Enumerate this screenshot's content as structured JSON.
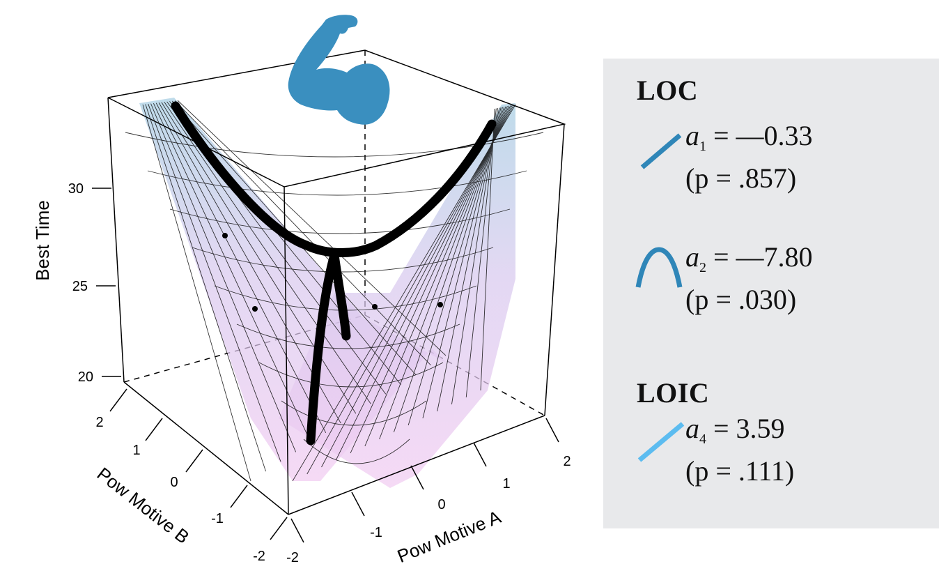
{
  "chart_data": {
    "type": "surface3d",
    "zlabel": "Best Time",
    "xlabel": "Pow Motive A",
    "ylabel": "Pow Motive B",
    "z_ticks": [
      "20",
      "25",
      "30"
    ],
    "x_ticks": [
      "-2",
      "-1",
      "0",
      "1",
      "2"
    ],
    "y_ticks": [
      "-2",
      "-1",
      "0",
      "1",
      "2"
    ],
    "xlim": [
      -2,
      2
    ],
    "ylim": [
      -2,
      2
    ],
    "zlim": [
      20,
      35
    ],
    "surface_colors": {
      "high": "#a9cfe3",
      "low": "#f2cdf2",
      "grid": "#111111"
    },
    "ridge_line_color": "#000000",
    "icon": "flexed-arm-icon",
    "icon_color": "#3a8fbf"
  },
  "legend": {
    "loc": {
      "heading": "LOC",
      "a1": {
        "symbol": "a",
        "sub": "1",
        "value": "= —0.33",
        "p": "(p = .857)",
        "color": "#2f86b8"
      },
      "a2": {
        "symbol": "a",
        "sub": "2",
        "value": "= —7.80",
        "p": "(p = .030)",
        "color": "#2f86b8"
      }
    },
    "loic": {
      "heading": "LOIC",
      "a4": {
        "symbol": "a",
        "sub": "4",
        "value": "= 3.59",
        "p": "(p = .111)",
        "color": "#5cbcf0"
      }
    }
  }
}
